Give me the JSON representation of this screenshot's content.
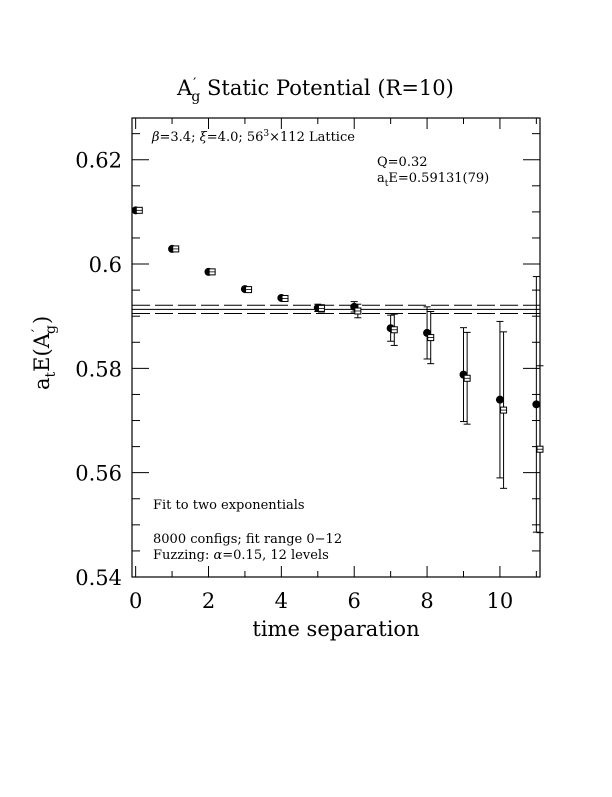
{
  "chart_data": {
    "type": "scatter",
    "title": "A′g  Static Potential (R=10)",
    "title_main": "A",
    "title_prime": "′",
    "title_sub": "g",
    "title_rest": "  Static Potential (R=10)",
    "xlabel": "time separation",
    "ylabel": "atE(A′g)",
    "ylabel_parts": {
      "a": "a",
      "t": "t",
      "E": "E(A",
      "prime": "′",
      "g": "g",
      "close": ")"
    },
    "xlim": [
      -0.1,
      11.1
    ],
    "ylim": [
      0.54,
      0.628
    ],
    "x_ticks": [
      0,
      2,
      4,
      6,
      8,
      10
    ],
    "x_tick_labels": [
      "0",
      "2",
      "4",
      "6",
      "8",
      "10"
    ],
    "y_ticks": [
      0.54,
      0.56,
      0.58,
      0.6,
      0.62
    ],
    "y_tick_labels": [
      "0.54",
      "0.56",
      "0.58",
      "0.6",
      "0.62"
    ],
    "grid": false,
    "series": [
      {
        "marker": "filled-circle",
        "x": [
          0,
          1,
          2,
          3,
          4,
          5,
          6,
          7,
          8,
          9,
          10,
          11
        ],
        "y": [
          0.6103,
          0.6029,
          0.5985,
          0.5952,
          0.5935,
          0.5916,
          0.5918,
          0.5877,
          0.5868,
          0.5788,
          0.574,
          0.5731
        ],
        "err": [
          0.0002,
          0.0003,
          0.0003,
          0.0004,
          0.0005,
          0.0007,
          0.001,
          0.0025,
          0.005,
          0.009,
          0.015,
          0.0245
        ]
      },
      {
        "marker": "open-square",
        "x": [
          0.1,
          1.1,
          2.1,
          3.1,
          4.1,
          5.1,
          6.1,
          7.1,
          8.1,
          9.1,
          10.1,
          11.1
        ],
        "y": [
          0.6103,
          0.6029,
          0.5985,
          0.5951,
          0.5934,
          0.5915,
          0.591,
          0.5874,
          0.5859,
          0.5781,
          0.572,
          0.5645
        ],
        "err": [
          0.0002,
          0.0003,
          0.0003,
          0.0004,
          0.0005,
          0.0007,
          0.0013,
          0.003,
          0.005,
          0.0088,
          0.015,
          0.016
        ]
      }
    ],
    "fit": {
      "value": 0.59131,
      "error": 0.00079,
      "band": [
        0.59052,
        0.5921
      ]
    },
    "annotations": {
      "lattice_beta": "β",
      "lattice_eq1": "=3.4; ",
      "lattice_xi": "ξ",
      "lattice_eq2": "=4.0; 56",
      "lattice_exp": "3",
      "lattice_rest": "×112 Lattice",
      "q_value": "Q=0.32",
      "fit_a": "a",
      "fit_t": "t",
      "fit_rest": "E=0.59131(79)",
      "fit_type": "Fit to two exponentials",
      "configs": "8000 configs; fit range 0−12",
      "fuzz_pre": "Fuzzing: ",
      "fuzz_alpha": "α",
      "fuzz_post": "=0.15, 12 levels"
    }
  }
}
